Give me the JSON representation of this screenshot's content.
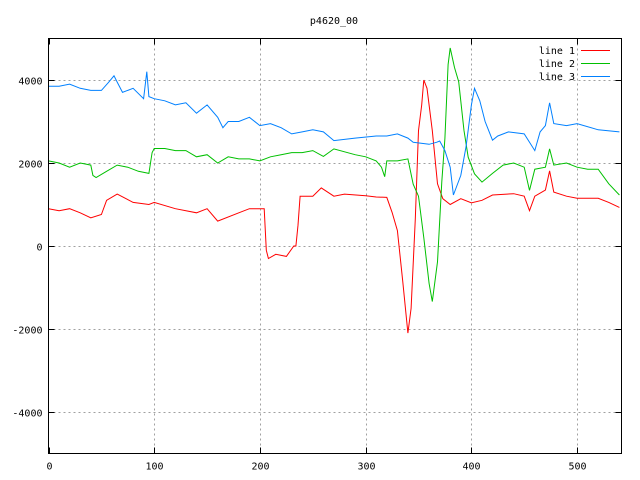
{
  "chart_data": {
    "type": "line",
    "title": "p4620_00",
    "xlabel": "",
    "ylabel": "",
    "xlim": [
      0,
      542
    ],
    "ylim": [
      -5000,
      5000
    ],
    "xticks": [
      0,
      100,
      200,
      300,
      400,
      500
    ],
    "yticks": [
      -4000,
      -2000,
      0,
      2000,
      4000
    ],
    "grid": true,
    "legend": "top-right",
    "series": [
      {
        "name": "line 1",
        "color": "#ff0000",
        "x": [
          0,
          10,
          20,
          30,
          40,
          50,
          55,
          65,
          80,
          95,
          100,
          120,
          140,
          150,
          160,
          180,
          190,
          200,
          204,
          206,
          208,
          215,
          225,
          232,
          234,
          236,
          238,
          250,
          258,
          270,
          280,
          300,
          310,
          320,
          325,
          330,
          335,
          340,
          343,
          347,
          350,
          353,
          355,
          358,
          363,
          368,
          373,
          380,
          390,
          400,
          410,
          420,
          440,
          450,
          455,
          460,
          470,
          474,
          478,
          490,
          500,
          520,
          530,
          540
        ],
        "y": [
          900,
          850,
          900,
          800,
          680,
          760,
          1100,
          1250,
          1050,
          1000,
          1050,
          900,
          800,
          900,
          600,
          800,
          900,
          900,
          900,
          -100,
          -300,
          -200,
          -250,
          0,
          0,
          500,
          1200,
          1200,
          1400,
          1200,
          1250,
          1210,
          1180,
          1170,
          810,
          370,
          -840,
          -2100,
          -1500,
          650,
          2780,
          3400,
          4000,
          3800,
          2780,
          1500,
          1140,
          1000,
          1140,
          1040,
          1100,
          1230,
          1260,
          1200,
          850,
          1200,
          1350,
          1810,
          1300,
          1200,
          1150,
          1150,
          1050,
          930
        ]
      },
      {
        "name": "line 2",
        "color": "#00c000",
        "x": [
          0,
          10,
          20,
          30,
          40,
          42,
          45,
          55,
          65,
          75,
          85,
          95,
          98,
          100,
          110,
          120,
          130,
          140,
          150,
          160,
          170,
          180,
          190,
          200,
          210,
          220,
          230,
          240,
          250,
          260,
          270,
          290,
          300,
          310,
          315,
          318,
          320,
          330,
          340,
          345,
          350,
          355,
          360,
          363,
          368,
          372,
          375,
          378,
          380,
          384,
          388,
          393,
          397,
          403,
          410,
          420,
          430,
          440,
          450,
          455,
          460,
          470,
          474,
          478,
          490,
          500,
          510,
          520,
          530,
          540
        ],
        "y": [
          2050,
          2000,
          1900,
          2000,
          1950,
          1700,
          1650,
          1800,
          1950,
          1900,
          1800,
          1750,
          2250,
          2350,
          2350,
          2300,
          2300,
          2150,
          2200,
          2000,
          2150,
          2100,
          2100,
          2050,
          2150,
          2200,
          2250,
          2250,
          2300,
          2160,
          2340,
          2200,
          2150,
          2050,
          1900,
          1670,
          2050,
          2050,
          2100,
          1490,
          1200,
          200,
          -900,
          -1340,
          -380,
          1550,
          2590,
          4370,
          4770,
          4300,
          3960,
          2780,
          2140,
          1740,
          1540,
          1750,
          1950,
          2000,
          1900,
          1340,
          1850,
          1900,
          2340,
          1950,
          2000,
          1900,
          1850,
          1850,
          1500,
          1230
        ]
      },
      {
        "name": "line 3",
        "color": "#0080ff",
        "x": [
          0,
          10,
          20,
          30,
          40,
          50,
          57,
          62,
          65,
          70,
          80,
          90,
          93,
          95,
          100,
          110,
          120,
          130,
          140,
          150,
          160,
          165,
          170,
          180,
          190,
          200,
          210,
          220,
          230,
          240,
          250,
          260,
          270,
          290,
          310,
          320,
          330,
          340,
          345,
          360,
          367,
          370,
          375,
          380,
          383,
          390,
          395,
          400,
          403,
          408,
          413,
          420,
          425,
          435,
          450,
          460,
          465,
          470,
          474,
          478,
          490,
          500,
          520,
          540
        ],
        "y": [
          3850,
          3850,
          3900,
          3800,
          3750,
          3750,
          3950,
          4100,
          3950,
          3700,
          3800,
          3550,
          4200,
          3600,
          3550,
          3500,
          3400,
          3450,
          3200,
          3400,
          3100,
          2850,
          3000,
          3000,
          3100,
          2900,
          2950,
          2850,
          2700,
          2750,
          2800,
          2750,
          2540,
          2600,
          2650,
          2650,
          2700,
          2600,
          2500,
          2450,
          2500,
          2530,
          2300,
          1900,
          1230,
          1700,
          2400,
          3400,
          3800,
          3500,
          3000,
          2550,
          2650,
          2750,
          2700,
          2300,
          2750,
          2900,
          3450,
          2950,
          2900,
          2950,
          2800,
          2750
        ]
      }
    ]
  }
}
